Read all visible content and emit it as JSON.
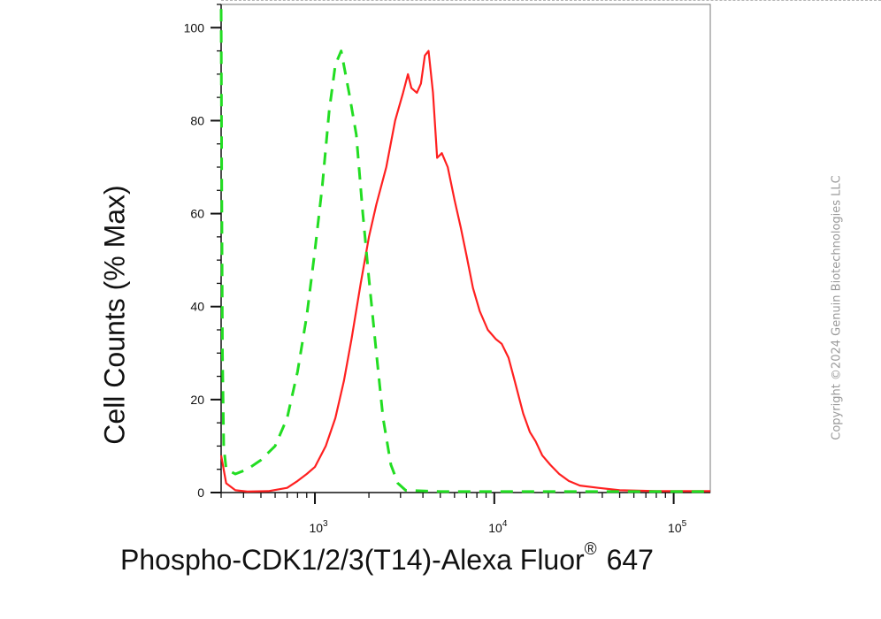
{
  "chart_data": {
    "type": "line",
    "xlabel": "Phospho-CDK1/2/3(T14)-Alexa Fluor",
    "xlabel_mark": "®",
    "xlabel_suffix": "647",
    "ylabel": "Cell Counts (% Max)",
    "xscale": "log",
    "xlim": [
      300,
      160000
    ],
    "ylim": [
      0,
      105
    ],
    "grid": false,
    "y_ticks": [
      {
        "value": 0,
        "label": "0"
      },
      {
        "value": 20,
        "label": "20"
      },
      {
        "value": 40,
        "label": "40"
      },
      {
        "value": 60,
        "label": "60"
      },
      {
        "value": 80,
        "label": "80"
      },
      {
        "value": 100,
        "label": "100"
      }
    ],
    "x_ticks": [
      {
        "value": 1000,
        "base": "10",
        "exp": "3"
      },
      {
        "value": 10000,
        "base": "10",
        "exp": "4"
      },
      {
        "value": 100000,
        "base": "10",
        "exp": "5"
      }
    ],
    "series": [
      {
        "color": "#ff2020",
        "style": "solid",
        "points": [
          [
            300,
            8
          ],
          [
            320,
            2
          ],
          [
            360,
            0.5
          ],
          [
            420,
            0.2
          ],
          [
            550,
            0.3
          ],
          [
            700,
            1
          ],
          [
            800,
            2.5
          ],
          [
            900,
            4
          ],
          [
            1000,
            5.5
          ],
          [
            1150,
            10
          ],
          [
            1300,
            16
          ],
          [
            1450,
            24
          ],
          [
            1600,
            33
          ],
          [
            1800,
            45
          ],
          [
            2000,
            55
          ],
          [
            2200,
            62
          ],
          [
            2500,
            70
          ],
          [
            2800,
            80
          ],
          [
            3100,
            86
          ],
          [
            3300,
            90
          ],
          [
            3450,
            87
          ],
          [
            3700,
            86
          ],
          [
            3900,
            88
          ],
          [
            4100,
            94
          ],
          [
            4300,
            95
          ],
          [
            4550,
            86
          ],
          [
            4800,
            72
          ],
          [
            5100,
            73
          ],
          [
            5500,
            70
          ],
          [
            6000,
            63
          ],
          [
            6500,
            57
          ],
          [
            7000,
            51
          ],
          [
            7600,
            44
          ],
          [
            8300,
            39
          ],
          [
            9200,
            35
          ],
          [
            10200,
            33
          ],
          [
            11000,
            32
          ],
          [
            12000,
            29
          ],
          [
            13000,
            24
          ],
          [
            14500,
            17
          ],
          [
            15800,
            13
          ],
          [
            17000,
            11
          ],
          [
            18500,
            8
          ],
          [
            20500,
            6
          ],
          [
            23000,
            4
          ],
          [
            26000,
            2.5
          ],
          [
            30000,
            1.5
          ],
          [
            38000,
            1
          ],
          [
            50000,
            0.5
          ],
          [
            80000,
            0.3
          ],
          [
            160000,
            0.3
          ]
        ]
      },
      {
        "color": "#22dd22",
        "style": "dashed",
        "points": [
          [
            300,
            104
          ],
          [
            302,
            70
          ],
          [
            305,
            30
          ],
          [
            310,
            10
          ],
          [
            320,
            5
          ],
          [
            360,
            4
          ],
          [
            420,
            5
          ],
          [
            500,
            7
          ],
          [
            600,
            10
          ],
          [
            700,
            16
          ],
          [
            800,
            26
          ],
          [
            900,
            38
          ],
          [
            1000,
            52
          ],
          [
            1100,
            66
          ],
          [
            1200,
            82
          ],
          [
            1300,
            92
          ],
          [
            1400,
            95
          ],
          [
            1550,
            86
          ],
          [
            1700,
            77
          ],
          [
            1850,
            60
          ],
          [
            2000,
            46
          ],
          [
            2200,
            30
          ],
          [
            2400,
            16
          ],
          [
            2650,
            6
          ],
          [
            2900,
            2
          ],
          [
            3200,
            0.5
          ],
          [
            5000,
            0.2
          ],
          [
            160000,
            0.2
          ]
        ]
      }
    ]
  },
  "watermark": "Copyright ©2024 Genuin Biotechnologies LLC"
}
